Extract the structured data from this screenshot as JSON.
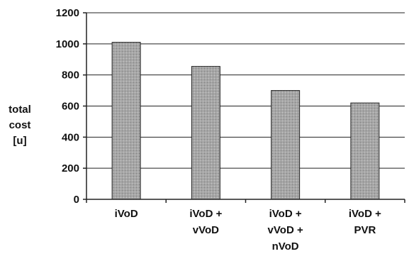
{
  "chart_data": {
    "type": "bar",
    "categories": [
      [
        "iVoD"
      ],
      [
        "iVoD +",
        "vVoD"
      ],
      [
        "iVoD +",
        "vVoD +",
        "nVoD"
      ],
      [
        "iVoD +",
        "PVR"
      ]
    ],
    "values": [
      1010,
      855,
      700,
      620
    ],
    "ylabel": [
      "total",
      "cost",
      "[u]"
    ],
    "yticks": [
      "0",
      "200",
      "400",
      "600",
      "800",
      "1000",
      "1200"
    ],
    "ylim": [
      0,
      1200
    ],
    "grid": true,
    "legend": "none",
    "colors": {
      "bar": "#9c9c9c",
      "bar_edge": "#222222",
      "grid": "#222222",
      "text": "#111111"
    }
  }
}
